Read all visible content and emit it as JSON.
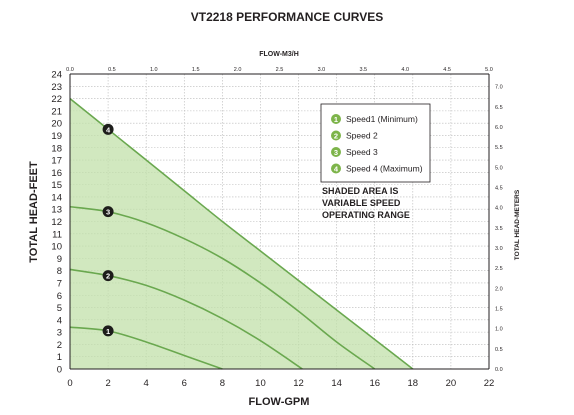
{
  "chart_data": {
    "type": "area",
    "title": "VT2218 PERFORMANCE CURVES",
    "xlabel": "FLOW-GPM",
    "ylabel": "TOTAL HEAD-FEET",
    "x2label": "FLOW-M3/H",
    "y2label": "TOTAL HEAD-METERS",
    "xlim": [
      0,
      22
    ],
    "ylim": [
      0,
      24
    ],
    "x_ticks": [
      0,
      2,
      4,
      6,
      8,
      10,
      12,
      14,
      16,
      18,
      20,
      22
    ],
    "y_ticks": [
      0,
      1,
      2,
      3,
      4,
      5,
      6,
      7,
      8,
      9,
      10,
      11,
      12,
      13,
      14,
      15,
      16,
      17,
      18,
      19,
      20,
      21,
      22,
      23,
      24
    ],
    "x2_ticks": [
      "0.0",
      "0.5",
      "1.0",
      "1.5",
      "2.0",
      "2.5",
      "3.0",
      "3.5",
      "4.0",
      "4.5",
      "5.0"
    ],
    "y2_ticks": [
      "0.0",
      "0.5",
      "1.0",
      "1.5",
      "2.0",
      "2.5",
      "3.0",
      "3.5",
      "4.0",
      "4.5",
      "5.0",
      "5.5",
      "6.0",
      "6.5",
      "7.0"
    ],
    "grid": true,
    "series": [
      {
        "name": "Speed1 (Minimum)",
        "marker": "1",
        "x": [
          0,
          2,
          4,
          6,
          8
        ],
        "y": [
          3.4,
          3.1,
          2.2,
          1.1,
          0
        ]
      },
      {
        "name": "Speed 2",
        "marker": "2",
        "x": [
          0,
          2,
          4,
          6,
          8,
          10,
          12.2
        ],
        "y": [
          8.1,
          7.6,
          6.8,
          5.6,
          4.1,
          2.3,
          0
        ]
      },
      {
        "name": "Speed 3",
        "marker": "3",
        "x": [
          0,
          2,
          4,
          6,
          8,
          10,
          12,
          14,
          16
        ],
        "y": [
          13.2,
          12.8,
          11.9,
          10.6,
          9.0,
          7.0,
          4.7,
          2.2,
          0
        ]
      },
      {
        "name": "Speed 4  (Maximum)",
        "marker": "4",
        "x": [
          0,
          2,
          4,
          6,
          8,
          10,
          12,
          14,
          16,
          18
        ],
        "y": [
          22,
          19.5,
          17.0,
          14.5,
          12.0,
          9.6,
          7.2,
          4.8,
          2.4,
          0
        ]
      }
    ],
    "markers_at_x": 2,
    "annotation": [
      "SHADED AREA IS",
      "VARIABLE SPEED",
      "OPERATING RANGE"
    ],
    "legend_placement": "top-right",
    "colors": {
      "line": "#6aa84f",
      "fill": "#c2e0a9",
      "marker_bg": "#1d1d1b",
      "legend_badge": "#7db44a"
    }
  }
}
